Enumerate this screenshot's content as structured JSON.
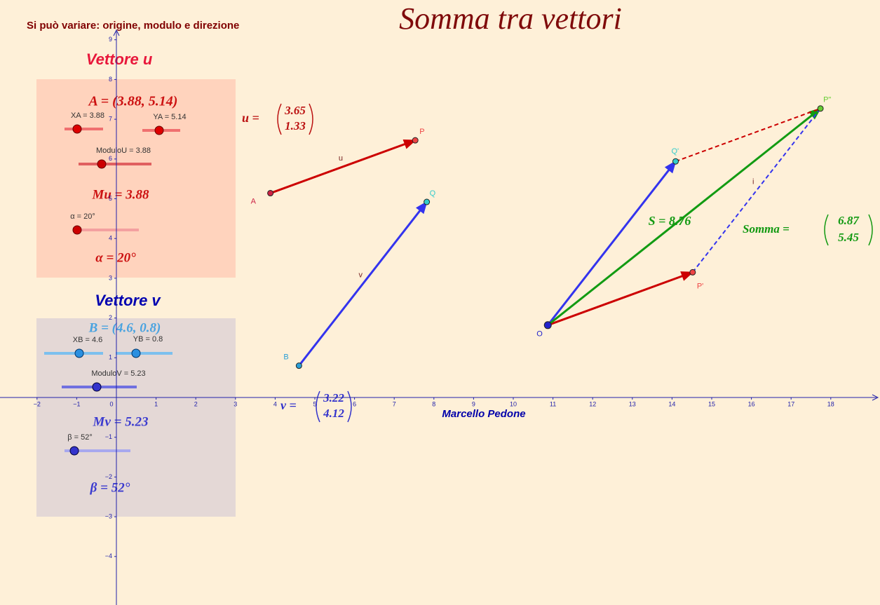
{
  "header": {
    "title": "Somma tra vettori",
    "note": "Si può variare: origine, modulo e direzione",
    "author": "Marcello Pedone"
  },
  "axes": {
    "xticks": [
      {
        "value": -2,
        "label": "−2"
      },
      {
        "value": -1,
        "label": "−1"
      },
      0,
      1,
      2,
      3,
      4,
      5,
      6,
      7,
      8,
      9,
      10,
      11,
      12,
      13,
      14,
      15,
      16,
      17,
      18
    ],
    "yticks": [
      {
        "value": -4,
        "label": "−4"
      },
      {
        "value": -3,
        "label": "−3"
      },
      {
        "value": -2,
        "label": "−2"
      },
      {
        "value": -1,
        "label": "−1"
      },
      1,
      2,
      3,
      4,
      5,
      6,
      7,
      8,
      9
    ]
  },
  "panel_u": {
    "heading": "Vettore u",
    "origin": "A = (3.88, 5.14)",
    "slider_x": "XA = 3.88",
    "slider_y": "YA = 5.14",
    "slider_modulus": "ModuloU = 3.88",
    "modulus": "Mu = 3.88",
    "slider_angle": "α = 20°",
    "angle": "α = 20°"
  },
  "panel_v": {
    "heading": "Vettore v",
    "origin": "B = (4.6, 0.8)",
    "slider_x": "XB = 4.6",
    "slider_y": "YB = 0.8",
    "slider_modulus": "ModuloV = 5.23",
    "modulus": "Mv = 5.23",
    "slider_angle": "β = 52°",
    "angle": "β = 52°"
  },
  "points": [
    {
      "name": "A",
      "x": 3.88,
      "y": 5.14
    },
    {
      "name": "P",
      "x": 7.53,
      "y": 6.47
    },
    {
      "name": "B",
      "x": 4.6,
      "y": 0.8
    },
    {
      "name": "Q",
      "x": 7.82,
      "y": 4.92
    },
    {
      "name": "O",
      "x": 10.87,
      "y": 1.82
    },
    {
      "name": "P'",
      "x": 14.52,
      "y": 3.15
    },
    {
      "name": "Q'",
      "x": 14.09,
      "y": 5.94
    },
    {
      "name": "P\"",
      "x": 17.74,
      "y": 7.27
    }
  ],
  "vectors": [
    {
      "label": "u",
      "from": 0,
      "to": 1,
      "color": "#cc0000"
    },
    {
      "label": "v",
      "from": 2,
      "to": 3,
      "color": "#3333ee"
    },
    {
      "label": null,
      "from": 4,
      "to": 5,
      "color": "#cc0000"
    },
    {
      "label": null,
      "from": 4,
      "to": 6,
      "color": "#3333ee"
    },
    {
      "label": null,
      "from": 4,
      "to": 7,
      "color": "#129b12"
    },
    {
      "label": null,
      "from": 6,
      "to": 7,
      "color": "#cc0000",
      "dashed": true
    },
    {
      "label": "i",
      "from": 5,
      "to": 7,
      "color": "#3333ee",
      "dashed": true
    }
  ],
  "vector_u": {
    "label": "u =",
    "values": [
      3.65,
      1.33
    ]
  },
  "vector_v": {
    "label": "v =",
    "values": [
      3.22,
      4.12
    ]
  },
  "sum": {
    "length": "S = 8.76",
    "label": "Somma =",
    "values": [
      6.87,
      5.45
    ]
  }
}
